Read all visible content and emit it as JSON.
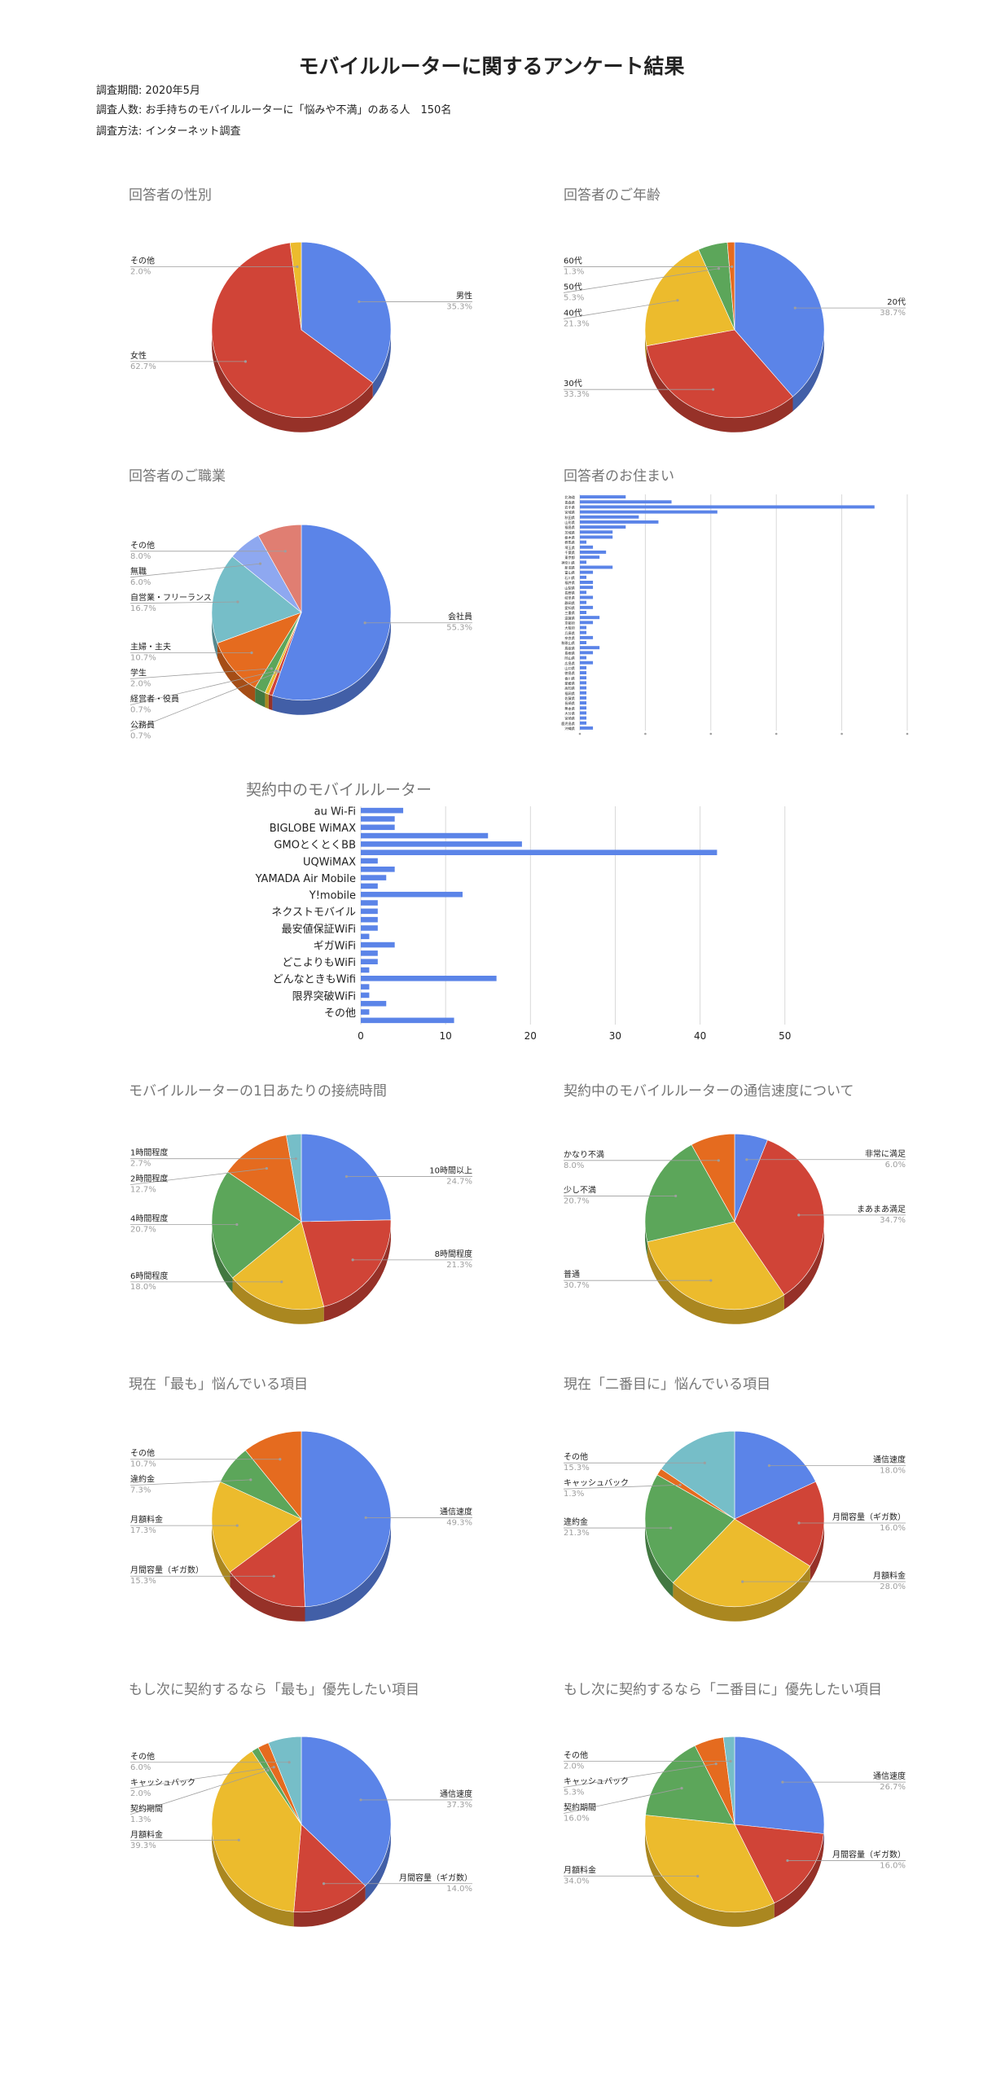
{
  "page": {
    "title": "モバイルルーターに関するアンケート結果",
    "period": "調査期間: 2020年5月",
    "respondents": "調査人数: お手持ちのモバイルルーターに「悩みや不満」のある人　150名",
    "method": "調査方法: インターネット調査"
  },
  "colors": {
    "blue": "#5b84e8",
    "red": "#d04437",
    "yellow": "#ecbb2d",
    "green": "#5ca65a",
    "orange": "#e56b1f",
    "teal": "#76bec8",
    "lightblue": "#8ea8f0",
    "salmon": "#e07e72"
  },
  "chart_data": [
    {
      "id": "gender",
      "type": "pie",
      "title": "回答者の性別",
      "slices": [
        {
          "label": "男性",
          "value": 35.3,
          "pct": "35.3%",
          "color": "#5b84e8"
        },
        {
          "label": "女性",
          "value": 62.7,
          "pct": "62.7%",
          "color": "#d04437"
        },
        {
          "label": "その他",
          "value": 2.0,
          "pct": "2.0%",
          "color": "#ecbb2d"
        }
      ]
    },
    {
      "id": "age",
      "type": "pie",
      "title": "回答者のご年齢",
      "slices": [
        {
          "label": "20代",
          "value": 38.7,
          "pct": "38.7%",
          "color": "#5b84e8"
        },
        {
          "label": "30代",
          "value": 33.3,
          "pct": "33.3%",
          "color": "#d04437"
        },
        {
          "label": "40代",
          "value": 21.3,
          "pct": "21.3%",
          "color": "#ecbb2d"
        },
        {
          "label": "50代",
          "value": 5.3,
          "pct": "5.3%",
          "color": "#5ca65a"
        },
        {
          "label": "60代",
          "value": 1.3,
          "pct": "1.3%",
          "color": "#e56b1f"
        }
      ]
    },
    {
      "id": "occupation",
      "type": "pie",
      "title": "回答者のご職業",
      "slices": [
        {
          "label": "会社員",
          "value": 55.3,
          "pct": "55.3%",
          "color": "#5b84e8"
        },
        {
          "label": "公務員",
          "value": 0.7,
          "pct": "0.7%",
          "color": "#d04437"
        },
        {
          "label": "経営者・役員",
          "value": 0.7,
          "pct": "0.7%",
          "color": "#ecbb2d"
        },
        {
          "label": "学生",
          "value": 2.0,
          "pct": "2.0%",
          "color": "#5ca65a"
        },
        {
          "label": "主婦・主夫",
          "value": 10.7,
          "pct": "10.7%",
          "color": "#e56b1f"
        },
        {
          "label": "自営業・フリーランス",
          "value": 16.7,
          "pct": "16.7%",
          "color": "#76bec8"
        },
        {
          "label": "無職",
          "value": 6.0,
          "pct": "6.0%",
          "color": "#8ea8f0"
        },
        {
          "label": "その他",
          "value": 8.0,
          "pct": "8.0%",
          "color": "#e07e72"
        }
      ]
    },
    {
      "id": "residence",
      "type": "bar",
      "title": "回答者のお住まい",
      "categories": [
        "北海道",
        "青森県",
        "岩手県",
        "宮城県",
        "秋田県",
        "山形県",
        "福島県",
        "茨城県",
        "栃木県",
        "群馬県",
        "埼玉県",
        "千葉県",
        "東京都",
        "神奈川県",
        "新潟県",
        "富山県",
        "石川県",
        "福井県",
        "山梨県",
        "長野県",
        "岐阜県",
        "静岡県",
        "愛知県",
        "三重県",
        "滋賀県",
        "京都府",
        "大阪府",
        "兵庫県",
        "奈良県",
        "和歌山県",
        "鳥取県",
        "島根県",
        "岡山県",
        "広島県",
        "山口県",
        "徳島県",
        "香川県",
        "愛媛県",
        "高知県",
        "福岡県",
        "佐賀県",
        "長崎県",
        "熊本県",
        "大分県",
        "宮崎県",
        "鹿児島県",
        "沖縄県"
      ],
      "values": [
        7,
        14,
        45,
        21,
        9,
        12,
        7,
        5,
        5,
        1,
        2,
        4,
        3,
        1,
        5,
        2,
        1,
        2,
        2,
        1,
        2,
        1,
        2,
        1,
        3,
        2,
        1,
        1,
        2,
        1,
        3,
        2,
        1,
        2,
        1,
        1,
        1,
        1,
        1,
        1,
        1,
        1,
        1,
        1,
        1,
        1,
        2
      ],
      "xlim": [
        0,
        50
      ]
    },
    {
      "id": "router",
      "type": "bar",
      "title": "契約中のモバイルルーター",
      "categories": [
        "au Wi-Fi",
        "",
        "BIGLOBE WiMAX",
        "",
        "GMOとくとくBB",
        "",
        "UQWiMAX",
        "",
        "YAMADA Air Mobile",
        "",
        "Y!mobile",
        "",
        "ネクストモバイル",
        "",
        "最安値保証WiFi",
        "",
        "ギガWiFi",
        "",
        "どこよりもWiFi",
        "",
        "どんなときもWifi",
        "",
        "限界突破WiFi",
        "",
        "その他",
        ""
      ],
      "values": [
        5,
        4,
        4,
        15,
        19,
        42,
        2,
        4,
        3,
        2,
        12,
        2,
        2,
        2,
        2,
        1,
        4,
        2,
        2,
        1,
        16,
        1,
        1,
        3,
        1,
        11
      ],
      "xticks": [
        0,
        10,
        20,
        30,
        40,
        50
      ],
      "xlim": [
        0,
        53
      ]
    },
    {
      "id": "hours",
      "type": "pie",
      "title": "モバイルルーターの1日あたりの接続時間",
      "slices": [
        {
          "label": "10時間以上",
          "value": 24.7,
          "pct": "24.7%",
          "color": "#5b84e8"
        },
        {
          "label": "8時間程度",
          "value": 21.3,
          "pct": "21.3%",
          "color": "#d04437"
        },
        {
          "label": "6時間程度",
          "value": 18.0,
          "pct": "18.0%",
          "color": "#ecbb2d"
        },
        {
          "label": "4時間程度",
          "value": 20.7,
          "pct": "20.7%",
          "color": "#5ca65a"
        },
        {
          "label": "2時間程度",
          "value": 12.7,
          "pct": "12.7%",
          "color": "#e56b1f"
        },
        {
          "label": "1時間程度",
          "value": 2.7,
          "pct": "2.7%",
          "color": "#76bec8"
        }
      ]
    },
    {
      "id": "speed",
      "type": "pie",
      "title": "契約中のモバイルルーターの通信速度について",
      "slices": [
        {
          "label": "非常に満足",
          "value": 6.0,
          "pct": "6.0%",
          "color": "#5b84e8"
        },
        {
          "label": "まあまあ満足",
          "value": 34.7,
          "pct": "34.7%",
          "color": "#d04437"
        },
        {
          "label": "普通",
          "value": 30.7,
          "pct": "30.7%",
          "color": "#ecbb2d"
        },
        {
          "label": "少し不満",
          "value": 20.7,
          "pct": "20.7%",
          "color": "#5ca65a"
        },
        {
          "label": "かなり不満",
          "value": 8.0,
          "pct": "8.0%",
          "color": "#e56b1f"
        }
      ]
    },
    {
      "id": "worry1",
      "type": "pie",
      "title": "現在「最も」悩んでいる項目",
      "slices": [
        {
          "label": "通信速度",
          "value": 49.3,
          "pct": "49.3%",
          "color": "#5b84e8"
        },
        {
          "label": "月間容量（ギガ数）",
          "value": 15.3,
          "pct": "15.3%",
          "color": "#d04437"
        },
        {
          "label": "月額料金",
          "value": 17.3,
          "pct": "17.3%",
          "color": "#ecbb2d"
        },
        {
          "label": "違約金",
          "value": 7.3,
          "pct": "7.3%",
          "color": "#5ca65a"
        },
        {
          "label": "その他",
          "value": 10.7,
          "pct": "10.7%",
          "color": "#e56b1f"
        }
      ]
    },
    {
      "id": "worry2",
      "type": "pie",
      "title": "現在「二番目に」悩んでいる項目",
      "slices": [
        {
          "label": "通信速度",
          "value": 18.0,
          "pct": "18.0%",
          "color": "#5b84e8"
        },
        {
          "label": "月間容量（ギガ数）",
          "value": 16.0,
          "pct": "16.0%",
          "color": "#d04437"
        },
        {
          "label": "月額料金",
          "value": 28.0,
          "pct": "28.0%",
          "color": "#ecbb2d"
        },
        {
          "label": "違約金",
          "value": 21.3,
          "pct": "21.3%",
          "color": "#5ca65a"
        },
        {
          "label": "キャッシュバック",
          "value": 1.3,
          "pct": "1.3%",
          "color": "#e56b1f"
        },
        {
          "label": "その他",
          "value": 15.3,
          "pct": "15.3%",
          "color": "#76bec8"
        }
      ]
    },
    {
      "id": "next1",
      "type": "pie",
      "title": "もし次に契約するなら「最も」優先したい項目",
      "slices": [
        {
          "label": "通信速度",
          "value": 37.3,
          "pct": "37.3%",
          "color": "#5b84e8"
        },
        {
          "label": "月間容量（ギガ数）",
          "value": 14.0,
          "pct": "14.0%",
          "color": "#d04437"
        },
        {
          "label": "月額料金",
          "value": 39.3,
          "pct": "39.3%",
          "color": "#ecbb2d"
        },
        {
          "label": "契約期間",
          "value": 1.3,
          "pct": "1.3%",
          "color": "#5ca65a"
        },
        {
          "label": "キャッシュバック",
          "value": 2.0,
          "pct": "2.0%",
          "color": "#e56b1f"
        },
        {
          "label": "その他",
          "value": 6.0,
          "pct": "6.0%",
          "color": "#76bec8"
        }
      ]
    },
    {
      "id": "next2",
      "type": "pie",
      "title": "もし次に契約するなら「二番目に」優先したい項目",
      "slices": [
        {
          "label": "通信速度",
          "value": 26.7,
          "pct": "26.7%",
          "color": "#5b84e8"
        },
        {
          "label": "月間容量（ギガ数）",
          "value": 16.0,
          "pct": "16.0%",
          "color": "#d04437"
        },
        {
          "label": "月額料金",
          "value": 34.0,
          "pct": "34.0%",
          "color": "#ecbb2d"
        },
        {
          "label": "契約期間",
          "value": 16.0,
          "pct": "16.0%",
          "color": "#5ca65a"
        },
        {
          "label": "キャッシュバック",
          "value": 5.3,
          "pct": "5.3%",
          "color": "#e56b1f"
        },
        {
          "label": "その他",
          "value": 2.0,
          "pct": "2.0%",
          "color": "#76bec8"
        }
      ]
    }
  ]
}
